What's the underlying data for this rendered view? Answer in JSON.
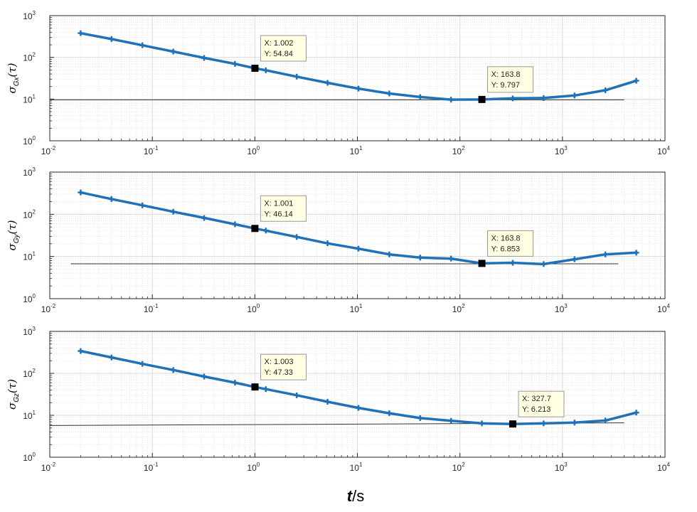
{
  "xlabel": {
    "var": "t",
    "unit": "/s"
  },
  "colors": {
    "series": "#1f72b8",
    "reference": "#333333",
    "grid": "#d9d9d9",
    "tooltip_bg": "#ffffe1"
  },
  "chart_data": [
    {
      "type": "line",
      "ylabel": {
        "prefix": "σ",
        "sub": "Gx",
        "suffix": "(τ)"
      },
      "xscale": "log",
      "yscale": "log",
      "xlim": [
        0.01,
        10000
      ],
      "ylim": [
        1,
        1000
      ],
      "x_ticks": [
        {
          "base": "10",
          "exp": "-2"
        },
        {
          "base": "10",
          "exp": "-1"
        },
        {
          "base": "10",
          "exp": "0"
        },
        {
          "base": "10",
          "exp": "1"
        },
        {
          "base": "10",
          "exp": "2"
        },
        {
          "base": "10",
          "exp": "3"
        },
        {
          "base": "10",
          "exp": "4"
        }
      ],
      "y_ticks": [
        {
          "base": "10",
          "exp": "0"
        },
        {
          "base": "10",
          "exp": "1"
        },
        {
          "base": "10",
          "exp": "2"
        },
        {
          "base": "10",
          "exp": "3"
        }
      ],
      "grid": true,
      "x": [
        0.02,
        0.04,
        0.08,
        0.16,
        0.32,
        0.64,
        1.002,
        1.28,
        2.56,
        5.12,
        10.24,
        20.48,
        40.96,
        81.92,
        163.8,
        327.7,
        655.4,
        1310.7,
        2621.4,
        5242.9
      ],
      "y": [
        380,
        275,
        195,
        138,
        97,
        70,
        54.84,
        49,
        34.5,
        24.5,
        17.8,
        13.6,
        11.2,
        9.7,
        9.797,
        10.4,
        10.6,
        12.2,
        16.3,
        27.5
      ],
      "reference_line": {
        "y": 9.6,
        "x_start": 0.01,
        "x_end": 4000
      },
      "datatips": [
        {
          "x": 1.002,
          "y": 54.84,
          "label_x": "X: 1.002",
          "label_y": "Y: 54.84"
        },
        {
          "x": 163.8,
          "y": 9.797,
          "label_x": "X: 163.8",
          "label_y": "Y: 9.797"
        }
      ]
    },
    {
      "type": "line",
      "ylabel": {
        "prefix": "σ",
        "sub": "Gy",
        "suffix": "(τ)"
      },
      "xscale": "log",
      "yscale": "log",
      "xlim": [
        0.01,
        10000
      ],
      "ylim": [
        1,
        1000
      ],
      "x_ticks": [
        {
          "base": "10",
          "exp": "-2"
        },
        {
          "base": "10",
          "exp": "-1"
        },
        {
          "base": "10",
          "exp": "0"
        },
        {
          "base": "10",
          "exp": "1"
        },
        {
          "base": "10",
          "exp": "2"
        },
        {
          "base": "10",
          "exp": "3"
        },
        {
          "base": "10",
          "exp": "4"
        }
      ],
      "y_ticks": [
        {
          "base": "10",
          "exp": "0"
        },
        {
          "base": "10",
          "exp": "1"
        },
        {
          "base": "10",
          "exp": "2"
        },
        {
          "base": "10",
          "exp": "3"
        }
      ],
      "grid": true,
      "x": [
        0.02,
        0.04,
        0.08,
        0.16,
        0.32,
        0.64,
        1.001,
        1.28,
        2.56,
        5.12,
        10.24,
        20.48,
        40.96,
        81.92,
        163.8,
        327.7,
        655.4,
        1310.7,
        2621.4,
        5242.9
      ],
      "y": [
        330,
        230,
        163,
        115,
        82,
        58,
        46.14,
        41,
        29,
        20.5,
        15.3,
        11.2,
        9.4,
        8.9,
        6.853,
        7.1,
        6.6,
        8.6,
        11.2,
        12.3
      ],
      "reference_line": {
        "y": 6.7,
        "x_start": 0.016,
        "x_end": 3500
      },
      "datatips": [
        {
          "x": 1.001,
          "y": 46.14,
          "label_x": "X: 1.001",
          "label_y": "Y: 46.14"
        },
        {
          "x": 163.8,
          "y": 6.853,
          "label_x": "X: 163.8",
          "label_y": "Y: 6.853"
        }
      ]
    },
    {
      "type": "line",
      "ylabel": {
        "prefix": "σ",
        "sub": "Gz",
        "suffix": "(τ)"
      },
      "xscale": "log",
      "yscale": "log",
      "xlim": [
        0.01,
        10000
      ],
      "ylim": [
        1,
        1000
      ],
      "x_ticks": [
        {
          "base": "10",
          "exp": "-2"
        },
        {
          "base": "10",
          "exp": "-1"
        },
        {
          "base": "10",
          "exp": "0"
        },
        {
          "base": "10",
          "exp": "1"
        },
        {
          "base": "10",
          "exp": "2"
        },
        {
          "base": "10",
          "exp": "3"
        },
        {
          "base": "10",
          "exp": "4"
        }
      ],
      "y_ticks": [
        {
          "base": "10",
          "exp": "0"
        },
        {
          "base": "10",
          "exp": "1"
        },
        {
          "base": "10",
          "exp": "2"
        },
        {
          "base": "10",
          "exp": "3"
        }
      ],
      "grid": true,
      "x": [
        0.02,
        0.04,
        0.08,
        0.16,
        0.32,
        0.64,
        1.003,
        1.28,
        2.56,
        5.12,
        10.24,
        20.48,
        40.96,
        81.92,
        163.8,
        327.7,
        655.4,
        1310.7,
        2621.4,
        5242.9
      ],
      "y": [
        340,
        240,
        168,
        120,
        84,
        60,
        47.33,
        42,
        30,
        21,
        15,
        11.2,
        8.6,
        7.4,
        6.4,
        6.213,
        6.4,
        6.7,
        7.5,
        11.6
      ],
      "reference_line": {
        "y": 5.7,
        "x_start": 0.01,
        "x_end": 4000,
        "y_end": 6.6
      },
      "datatips": [
        {
          "x": 1.003,
          "y": 47.33,
          "label_x": "X: 1.003",
          "label_y": "Y: 47.33"
        },
        {
          "x": 327.7,
          "y": 6.213,
          "label_x": "X: 327.7",
          "label_y": "Y: 6.213"
        }
      ]
    }
  ]
}
